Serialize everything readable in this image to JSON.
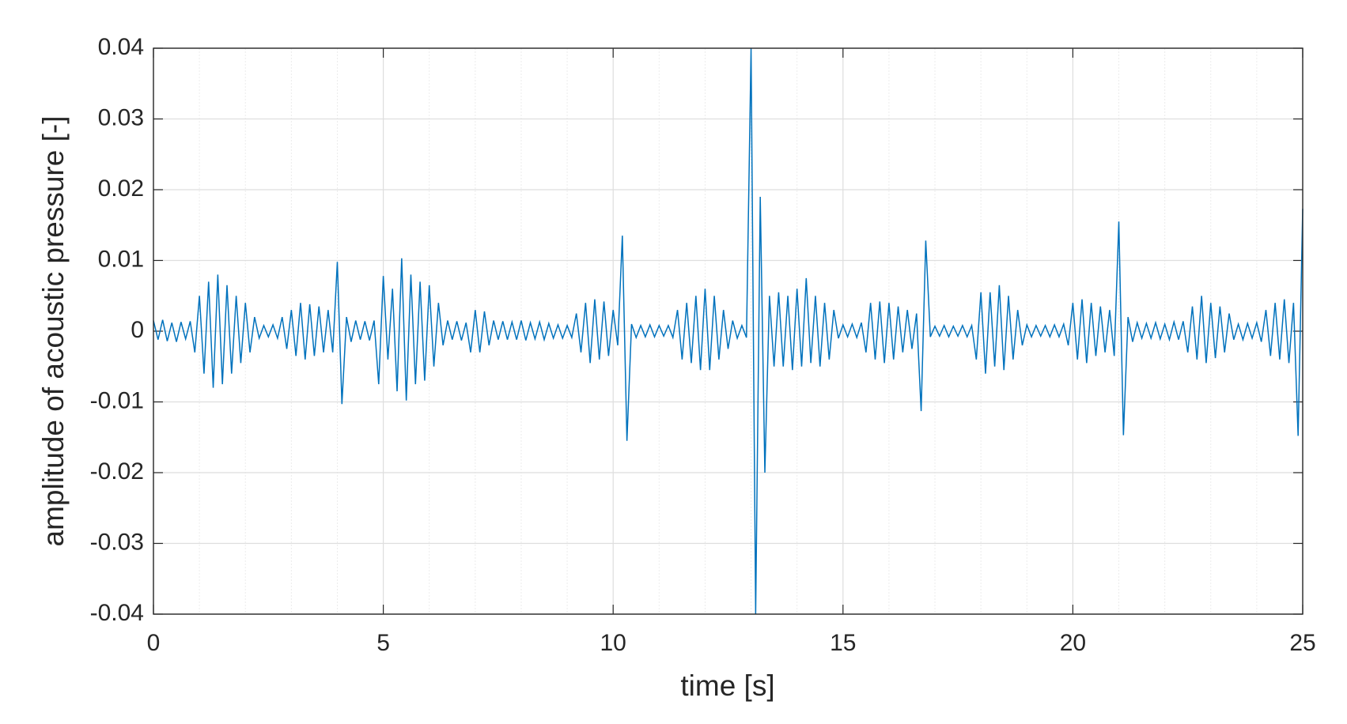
{
  "chart_data": {
    "type": "line",
    "xlabel": "time [s]",
    "ylabel": "amplitude of acoustic pressure [-]",
    "x": [
      0,
      0.1,
      0.2,
      0.3,
      0.4,
      0.5,
      0.6,
      0.7,
      0.8,
      0.9,
      1,
      1.1,
      1.2,
      1.3,
      1.4,
      1.5,
      1.6,
      1.7,
      1.8,
      1.9,
      2,
      2.1,
      2.2,
      2.3,
      2.4,
      2.5,
      2.6,
      2.7,
      2.8,
      2.9,
      3,
      3.1,
      3.2,
      3.3,
      3.4,
      3.5,
      3.6,
      3.7,
      3.8,
      3.9,
      4,
      4.1,
      4.2,
      4.3,
      4.4,
      4.5,
      4.6,
      4.7,
      4.8,
      4.9,
      5,
      5.1,
      5.2,
      5.3,
      5.4,
      5.5,
      5.6,
      5.7,
      5.8,
      5.9,
      6,
      6.1,
      6.2,
      6.3,
      6.4,
      6.5,
      6.6,
      6.7,
      6.8,
      6.9,
      7,
      7.1,
      7.2,
      7.3,
      7.4,
      7.5,
      7.6,
      7.7,
      7.8,
      7.9,
      8,
      8.1,
      8.2,
      8.3,
      8.4,
      8.5,
      8.6,
      8.7,
      8.8,
      8.9,
      9,
      9.1,
      9.2,
      9.3,
      9.4,
      9.5,
      9.6,
      9.7,
      9.8,
      9.9,
      10,
      10.1,
      10.2,
      10.3,
      10.4,
      10.5,
      10.6,
      10.7,
      10.8,
      10.9,
      11,
      11.1,
      11.2,
      11.3,
      11.4,
      11.5,
      11.6,
      11.7,
      11.8,
      11.9,
      12,
      12.1,
      12.2,
      12.3,
      12.4,
      12.5,
      12.6,
      12.7,
      12.8,
      12.9,
      13,
      13.1,
      13.2,
      13.3,
      13.4,
      13.5,
      13.6,
      13.7,
      13.8,
      13.9,
      14,
      14.1,
      14.2,
      14.3,
      14.4,
      14.5,
      14.6,
      14.7,
      14.8,
      14.9,
      15,
      15.1,
      15.2,
      15.3,
      15.4,
      15.5,
      15.6,
      15.7,
      15.8,
      15.9,
      16,
      16.1,
      16.2,
      16.3,
      16.4,
      16.5,
      16.6,
      16.7,
      16.8,
      16.9,
      17,
      17.1,
      17.2,
      17.3,
      17.4,
      17.5,
      17.6,
      17.7,
      17.8,
      17.9,
      18,
      18.1,
      18.2,
      18.3,
      18.4,
      18.5,
      18.6,
      18.7,
      18.8,
      18.9,
      19,
      19.1,
      19.2,
      19.3,
      19.4,
      19.5,
      19.6,
      19.7,
      19.8,
      19.9,
      20,
      20.1,
      20.2,
      20.3,
      20.4,
      20.5,
      20.6,
      20.7,
      20.8,
      20.9,
      21,
      21.1,
      21.2,
      21.3,
      21.4,
      21.5,
      21.6,
      21.7,
      21.8,
      21.9,
      22,
      22.1,
      22.2,
      22.3,
      22.4,
      22.5,
      22.6,
      22.7,
      22.8,
      22.9,
      23,
      23.1,
      23.2,
      23.3,
      23.4,
      23.5,
      23.6,
      23.7,
      23.8,
      23.9,
      24,
      24.1,
      24.2,
      24.3,
      24.4,
      24.5,
      24.6,
      24.7,
      24.8,
      24.9,
      25
    ],
    "series": [
      {
        "color": "#0072bd",
        "values": [
          0.0015,
          -0.0012,
          0.0016,
          -0.0014,
          0.0012,
          -0.0015,
          0.0013,
          -0.0011,
          0.0014,
          -0.003,
          0.005,
          -0.006,
          0.007,
          -0.008,
          0.008,
          -0.0075,
          0.0065,
          -0.006,
          0.005,
          -0.0045,
          0.004,
          -0.003,
          0.002,
          -0.001,
          0.0008,
          -0.0008,
          0.0009,
          -0.001,
          0.002,
          -0.0025,
          0.003,
          -0.0035,
          0.004,
          -0.004,
          0.0038,
          -0.0035,
          0.0035,
          -0.003,
          0.003,
          -0.003,
          0.0098,
          -0.0103,
          0.002,
          -0.0015,
          0.0015,
          -0.0012,
          0.0014,
          -0.0013,
          0.0015,
          -0.0075,
          0.0078,
          -0.004,
          0.006,
          -0.0085,
          0.0103,
          -0.0098,
          0.008,
          -0.0075,
          0.007,
          -0.007,
          0.0065,
          -0.005,
          0.004,
          -0.002,
          0.0015,
          -0.0012,
          0.0014,
          -0.0013,
          0.0012,
          -0.003,
          0.003,
          -0.003,
          0.0028,
          -0.002,
          0.0015,
          -0.0012,
          0.0014,
          -0.0012,
          0.0013,
          -0.0012,
          0.0015,
          -0.0013,
          0.0012,
          -0.0011,
          0.0013,
          -0.0012,
          0.0011,
          -0.001,
          0.0009,
          -0.001,
          0.0008,
          -0.0009,
          0.0025,
          -0.003,
          0.004,
          -0.0045,
          0.0045,
          -0.004,
          0.0042,
          -0.0035,
          0.003,
          -0.002,
          0.0135,
          -0.0155,
          0.001,
          -0.0009,
          0.0008,
          -0.0008,
          0.0009,
          -0.0008,
          0.0008,
          -0.0007,
          0.0008,
          -0.0009,
          0.003,
          -0.004,
          0.004,
          -0.0045,
          0.005,
          -0.0055,
          0.006,
          -0.0055,
          0.005,
          -0.004,
          0.003,
          -0.0025,
          0.0015,
          -0.001,
          0.0008,
          -0.0009,
          0.04,
          -0.04,
          0.019,
          -0.02,
          0.005,
          -0.005,
          0.0055,
          -0.005,
          0.005,
          -0.0055,
          0.006,
          -0.005,
          0.0075,
          -0.0045,
          0.005,
          -0.005,
          0.004,
          -0.004,
          0.003,
          -0.001,
          0.0009,
          -0.0008,
          0.001,
          -0.0009,
          0.0012,
          -0.003,
          0.004,
          -0.004,
          0.0042,
          -0.0045,
          0.004,
          -0.004,
          0.0035,
          -0.003,
          0.003,
          -0.0025,
          0.0025,
          -0.0113,
          0.0128,
          -0.0008,
          0.0007,
          -0.0007,
          0.0008,
          -0.0008,
          0.0007,
          -0.0007,
          0.0008,
          -0.0008,
          0.0008,
          -0.004,
          0.0055,
          -0.006,
          0.0055,
          -0.005,
          0.0065,
          -0.0055,
          0.005,
          -0.004,
          0.003,
          -0.002,
          0.0009,
          -0.0008,
          0.0008,
          -0.0007,
          0.0008,
          -0.0008,
          0.0009,
          -0.0008,
          0.001,
          -0.002,
          0.004,
          -0.004,
          0.0045,
          -0.0045,
          0.004,
          -0.0035,
          0.0035,
          -0.003,
          0.003,
          -0.0035,
          0.0155,
          -0.0147,
          0.002,
          -0.0015,
          0.0012,
          -0.001,
          0.0011,
          -0.001,
          0.0012,
          -0.0011,
          0.001,
          -0.0012,
          0.0013,
          -0.0012,
          0.0014,
          -0.003,
          0.0035,
          -0.004,
          0.005,
          -0.0045,
          0.004,
          -0.0038,
          0.0035,
          -0.003,
          0.0025,
          -0.0012,
          0.001,
          -0.0012,
          0.0011,
          -0.001,
          0.0012,
          -0.0015,
          0.003,
          -0.0035,
          0.004,
          -0.004,
          0.0045,
          -0.0045,
          0.004,
          -0.0148,
          0.0173
        ]
      }
    ],
    "xlim": [
      0,
      25
    ],
    "xticks": [
      0,
      5,
      10,
      15,
      20,
      25
    ],
    "ylim": [
      -0.04,
      0.04
    ],
    "yticks": [
      -0.04,
      -0.03,
      -0.02,
      -0.01,
      0,
      0.01,
      0.02,
      0.03,
      0.04
    ],
    "grid": true,
    "minor_grid": true
  }
}
